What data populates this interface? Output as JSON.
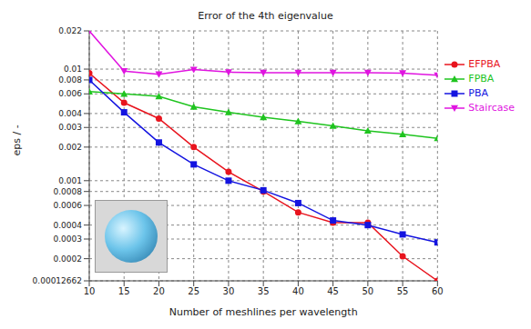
{
  "chart_data": {
    "type": "line",
    "title": "Error of the 4th eigenvalue",
    "x_label": "Number of meshlines per wavelength",
    "y_label": "eps / -",
    "x": [
      10,
      15,
      20,
      25,
      30,
      35,
      40,
      45,
      50,
      55,
      60
    ],
    "series": [
      {
        "name": "EFPBA",
        "color": "#e8141e",
        "marker": "circle",
        "values": [
          0.0092,
          0.005,
          0.0036,
          0.002,
          0.0012,
          0.0008,
          0.00052,
          0.00042,
          0.00042,
          0.00021,
          0.00012662
        ]
      },
      {
        "name": "FPBA",
        "color": "#1fc41f",
        "marker": "triangle-up",
        "values": [
          0.0063,
          0.006,
          0.0057,
          0.0046,
          0.0041,
          0.0037,
          0.0034,
          0.0031,
          0.0028,
          0.0026,
          0.0024
        ]
      },
      {
        "name": "PBA",
        "color": "#1414e0",
        "marker": "square",
        "values": [
          0.008,
          0.0041,
          0.0022,
          0.0014,
          0.001,
          0.00082,
          0.00063,
          0.00044,
          0.0004,
          0.00033,
          0.00028
        ]
      },
      {
        "name": "Staircase",
        "color": "#e014e0",
        "marker": "triangle-down",
        "values": [
          0.022,
          0.0096,
          0.009,
          0.0099,
          0.0094,
          0.0093,
          0.0093,
          0.0093,
          0.0093,
          0.0092,
          0.0088
        ]
      }
    ],
    "xlim": [
      10,
      60
    ],
    "xticks": [
      10,
      15,
      20,
      25,
      30,
      35,
      40,
      45,
      50,
      55,
      60
    ],
    "ylim": [
      0.00012662,
      0.022
    ],
    "yticks": [
      0.00012662,
      0.0002,
      0.0003,
      0.0004,
      0.0006,
      0.0008,
      0.001,
      0.002,
      0.003,
      0.004,
      0.006,
      0.008,
      0.01,
      0.022
    ],
    "log": "y",
    "grid": true,
    "legend": "upper right"
  }
}
